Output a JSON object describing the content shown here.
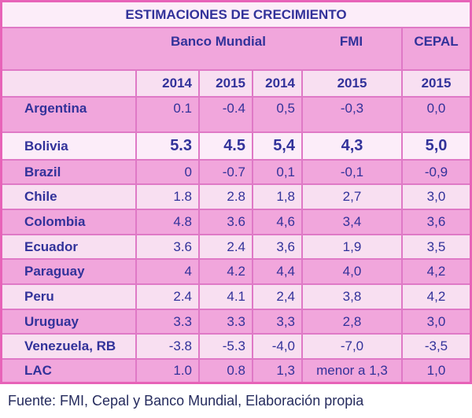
{
  "chart_data": {
    "type": "table",
    "title": "ESTIMACIONES DE CRECIMIENTO",
    "column_groups": [
      {
        "label": "Banco Mundial",
        "span": 2
      },
      {
        "label": "FMI",
        "span": 2
      },
      {
        "label": "CEPAL",
        "span": 1
      }
    ],
    "columns": [
      "2014",
      "2015",
      "2014",
      "2015",
      "2015"
    ],
    "rows": [
      {
        "country": "Argentina",
        "values": [
          "0.1",
          "-0.4",
          "0,5",
          "-0,3",
          "0,0"
        ]
      },
      {
        "country": "Bolivia",
        "values": [
          "5.3",
          "4.5",
          "5,4",
          "4,3",
          "5,0"
        ]
      },
      {
        "country": "Brazil",
        "values": [
          "0",
          "-0.7",
          "0,1",
          "-0,1",
          "-0,9"
        ]
      },
      {
        "country": "Chile",
        "values": [
          "1.8",
          "2.8",
          "1,8",
          "2,7",
          "3,0"
        ]
      },
      {
        "country": "Colombia",
        "values": [
          "4.8",
          "3.6",
          "4,6",
          "3,4",
          "3,6"
        ]
      },
      {
        "country": "Ecuador",
        "values": [
          "3.6",
          "2.4",
          "3,6",
          "1,9",
          "3,5"
        ]
      },
      {
        "country": "Paraguay",
        "values": [
          "4",
          "4.2",
          "4,4",
          "4,0",
          "4,2"
        ]
      },
      {
        "country": "Peru",
        "values": [
          "2.4",
          "4.1",
          "2,4",
          "3,8",
          "4,2"
        ]
      },
      {
        "country": "Uruguay",
        "values": [
          "3.3",
          "3.3",
          "3,3",
          "2,8",
          "3,0"
        ]
      },
      {
        "country": "Venezuela, RB",
        "values": [
          "-3.8",
          "-5.3",
          "-4,0",
          "-7,0",
          "-3,5"
        ]
      },
      {
        "country": "LAC",
        "values": [
          "1.0",
          "0.8",
          "1,3",
          "menor a 1,3",
          "1,0"
        ]
      }
    ],
    "highlight_row": "Bolivia",
    "footer": "Fuente: FMI, Cepal y Banco Mundial, Elaboración propia"
  },
  "colors": {
    "outer": "#e763b8",
    "line": "#df79c6",
    "medium": "#f1a6dc",
    "light": "#f8dff1",
    "lightest": "#fcedf9",
    "text": "#32329a",
    "footer_text": "#262c5e",
    "page_bg": "#ffffff"
  }
}
